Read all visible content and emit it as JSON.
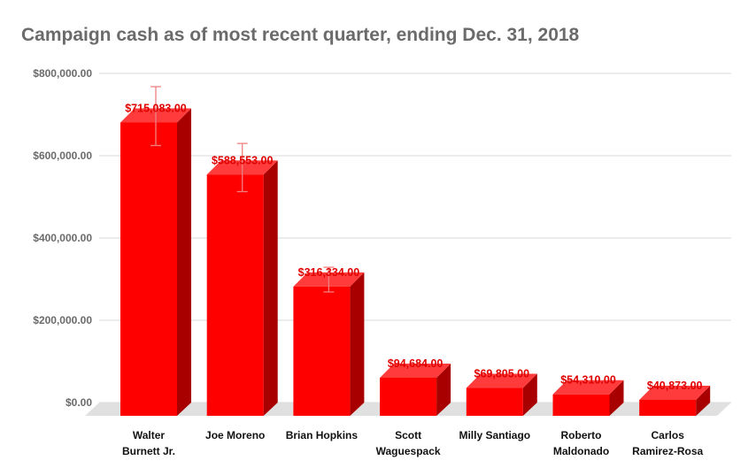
{
  "chart_data": {
    "type": "bar",
    "title": "Campaign cash as of most recent quarter, ending Dec. 31, 2018",
    "xlabel": "",
    "ylabel": "",
    "ylim": [
      0,
      800000
    ],
    "yticks": [
      0,
      200000,
      400000,
      600000,
      800000
    ],
    "ytick_labels": [
      "$0.00",
      "$200,000.00",
      "$400,000.00",
      "$600,000.00",
      "$800,000.00"
    ],
    "categories": [
      [
        "Walter",
        "Burnett Jr."
      ],
      [
        "Joe Moreno"
      ],
      [
        "Brian Hopkins"
      ],
      [
        "Scott",
        "Waguespack"
      ],
      [
        "Milly Santiago"
      ],
      [
        "Roberto",
        "Maldonado"
      ],
      [
        "Carlos",
        "Ramirez-Rosa"
      ]
    ],
    "values": [
      715083,
      588553,
      316334,
      94684,
      69805,
      54310,
      40873
    ],
    "data_labels": [
      "$715,083.00",
      "$588,553.00",
      "$316,334.00",
      "$94,684.00",
      "$69,805.00",
      "$54,310.00",
      "$40,873.00"
    ],
    "error_bars": [
      {
        "low": 642000,
        "high": 785000
      },
      {
        "low": 530000,
        "high": 647000
      },
      {
        "low": 286000,
        "high": 346000
      },
      null,
      null,
      null,
      null
    ],
    "grid": true,
    "bar_style": "3d",
    "colors": {
      "bar_front": "#ff0000",
      "bar_top": "#ff3b3b",
      "bar_side": "#a80000",
      "data_label": "#e00000",
      "error_bar": "#f08080",
      "grid": "#d9d9d9",
      "floor": "#e0e0e0",
      "title": "#6b6b6b"
    }
  }
}
